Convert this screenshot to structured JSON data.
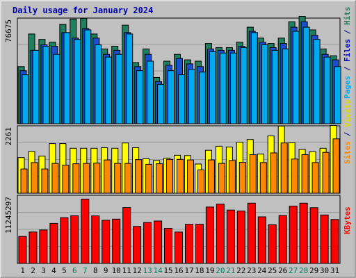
{
  "chart_data": {
    "type": "bar",
    "title": "Daily usage for January 2024",
    "days": [
      "1",
      "2",
      "3",
      "4",
      "5",
      "6",
      "7",
      "8",
      "9",
      "10",
      "11",
      "12",
      "13",
      "14",
      "15",
      "16",
      "17",
      "18",
      "19",
      "20",
      "21",
      "22",
      "23",
      "24",
      "25",
      "26",
      "27",
      "28",
      "29",
      "30",
      "31"
    ],
    "weekend_days": [
      "6",
      "7",
      "13",
      "14",
      "20",
      "21",
      "27",
      "28"
    ],
    "panels": [
      {
        "id": "pfh",
        "ymax_label": "76675",
        "ymax": 76675,
        "right_labels": [
          {
            "text": "Pages",
            "color": "#00aaee"
          },
          {
            "text": " / ",
            "color": "#000080"
          },
          {
            "text": "Files",
            "color": "#0000cc"
          },
          {
            "text": " / ",
            "color": "#000080"
          },
          {
            "text": "Hits",
            "color": "#2a7c5a"
          }
        ],
        "series": [
          {
            "name": "Hits",
            "color": "#1f7f5f",
            "values": [
              42000,
              66000,
              62000,
              60000,
              73000,
              77000,
              77500,
              66000,
              55000,
              57000,
              72500,
              45000,
              55000,
              34000,
              46000,
              51000,
              47000,
              46000,
              59000,
              56000,
              56000,
              60000,
              71000,
              63000,
              59000,
              63000,
              75000,
              79000,
              69000,
              55000,
              50000
            ]
          },
          {
            "name": "Files",
            "color": "#1a4fd0",
            "values": [
              39000,
              54000,
              58000,
              57000,
              67000,
              63000,
              70000,
              63000,
              51000,
              54000,
              67000,
              42000,
              51000,
              31000,
              43000,
              48000,
              44000,
              42000,
              55000,
              54000,
              54000,
              57000,
              68000,
              60000,
              56000,
              59000,
              71000,
              75000,
              65000,
              51000,
              47000
            ]
          },
          {
            "name": "Pages",
            "color": "#00aaee",
            "values": [
              36000,
              54000,
              57000,
              51000,
              67000,
              62000,
              69000,
              58000,
              49000,
              51000,
              66000,
              39000,
              46000,
              29000,
              39000,
              36000,
              40000,
              38000,
              53000,
              52000,
              52000,
              56000,
              67000,
              58000,
              54000,
              55000,
              68000,
              71000,
              62000,
              49000,
              42000
            ]
          }
        ]
      },
      {
        "id": "sv",
        "ymax_label": "2261",
        "ymax": 2261,
        "right_labels": [
          {
            "text": "Sites",
            "color": "#ff8800"
          },
          {
            "text": " / ",
            "color": "#000080"
          },
          {
            "text": "Visits",
            "color": "#dddd00"
          }
        ],
        "series": [
          {
            "name": "Visits",
            "color": "#ffff00",
            "values": [
              1220,
              1430,
              1270,
              1700,
              1700,
              1540,
              1540,
              1540,
              1560,
              1540,
              1720,
              1560,
              1180,
              1120,
              1200,
              1300,
              1290,
              1000,
              1470,
              1610,
              1580,
              1750,
              1840,
              1340,
              1960,
              2300,
              1730,
              1500,
              1420,
              1540,
              2320
            ]
          },
          {
            "name": "Sites",
            "color": "#ff8800",
            "values": [
              830,
              1050,
              830,
              1020,
              960,
              1010,
              1020,
              1030,
              1140,
              1020,
              1020,
              1150,
              990,
              1010,
              1160,
              1160,
              1140,
              800,
              1140,
              1020,
              1120,
              1060,
              1320,
              1050,
              1380,
              1720,
              1170,
              1320,
              1050,
              1400,
              1860
            ]
          }
        ]
      },
      {
        "id": "kb",
        "ymax_label": "11245297",
        "ymax": 11245297,
        "right_labels": [
          {
            "text": "KBytes",
            "color": "#ff0000"
          }
        ],
        "series": [
          {
            "name": "KBytes",
            "color": "#ff0000",
            "values": [
              4550000,
              5290000,
              5630000,
              6750000,
              7710000,
              8040000,
              10850000,
              8010000,
              7270000,
              7460000,
              9420000,
              6230000,
              6900000,
              7150000,
              5910000,
              5280000,
              6590000,
              6600000,
              9500000,
              9990000,
              9000000,
              8820000,
              10160000,
              7850000,
              6520000,
              8080000,
              9660000,
              10160000,
              9400000,
              8170000,
              7400000
            ]
          }
        ]
      }
    ]
  }
}
